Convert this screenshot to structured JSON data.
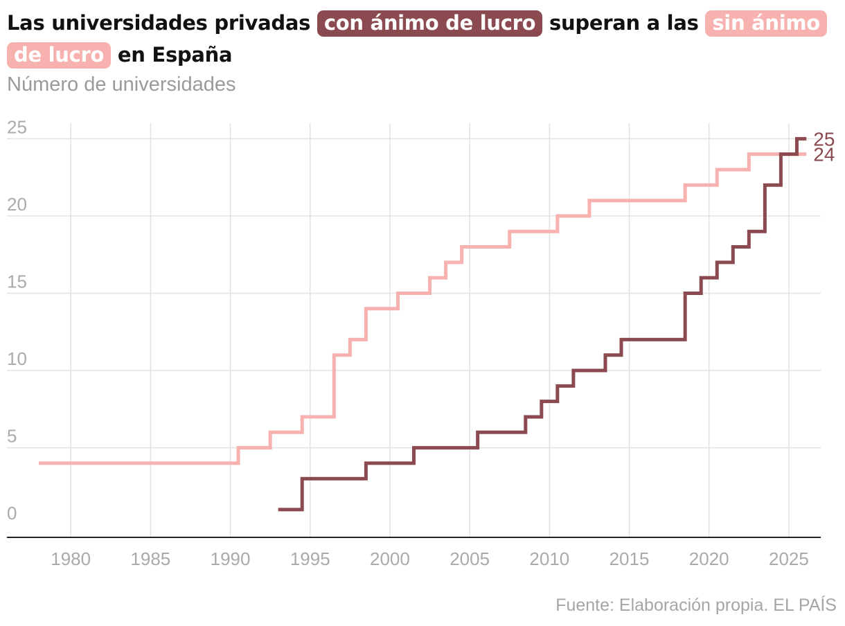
{
  "title": {
    "part1": "Las universidades privadas ",
    "highlight1": "con ánimo de lucro",
    "part2": " superan a las ",
    "highlight2": "sin ánimo de lucro",
    "part3": " en España"
  },
  "subtitle": "Número de universidades",
  "source": "Fuente: Elaboración propia. EL PAÍS",
  "colors": {
    "con_lucro": "#8b4a4f",
    "sin_lucro": "#f7b1ae",
    "grid": "#e2e2e2",
    "axis": "#222222"
  },
  "chart_data": {
    "type": "line",
    "step": true,
    "title": "Las universidades privadas con ánimo de lucro superan a las sin ánimo de lucro en España",
    "ylabel": "Número de universidades",
    "xlim": [
      1976,
      2027
    ],
    "ylim": [
      -0.8,
      26
    ],
    "xticks": [
      1980,
      1985,
      1990,
      1995,
      2000,
      2005,
      2010,
      2015,
      2020,
      2025
    ],
    "yticks": [
      0,
      5,
      10,
      15,
      20,
      25
    ],
    "series": [
      {
        "name": "sin ánimo de lucro",
        "end_label": "24",
        "start_x": 1978,
        "end_x": 2026.1,
        "points": [
          [
            1978,
            4
          ],
          [
            1990.5,
            5
          ],
          [
            1992.5,
            6
          ],
          [
            1994.5,
            7
          ],
          [
            1996.5,
            11
          ],
          [
            1997.5,
            12
          ],
          [
            1998.5,
            14
          ],
          [
            2000.5,
            15
          ],
          [
            2002.5,
            16
          ],
          [
            2003.5,
            17
          ],
          [
            2004.5,
            18
          ],
          [
            2007.5,
            19
          ],
          [
            2010.5,
            20
          ],
          [
            2012.5,
            21
          ],
          [
            2018.5,
            22
          ],
          [
            2020.5,
            23
          ],
          [
            2022.5,
            24
          ]
        ]
      },
      {
        "name": "con ánimo de lucro",
        "end_label": "25",
        "start_x": 1993,
        "end_x": 2026.1,
        "points": [
          [
            1993,
            1
          ],
          [
            1994.5,
            3
          ],
          [
            1998.5,
            4
          ],
          [
            2001.5,
            5
          ],
          [
            2005.5,
            6
          ],
          [
            2008.5,
            7
          ],
          [
            2009.5,
            8
          ],
          [
            2010.5,
            9
          ],
          [
            2011.5,
            10
          ],
          [
            2013.5,
            11
          ],
          [
            2014.5,
            12
          ],
          [
            2018.5,
            15
          ],
          [
            2019.5,
            16
          ],
          [
            2020.5,
            17
          ],
          [
            2021.5,
            18
          ],
          [
            2022.5,
            19
          ],
          [
            2023.5,
            22
          ],
          [
            2024.5,
            24
          ],
          [
            2025.5,
            25
          ]
        ]
      }
    ]
  }
}
